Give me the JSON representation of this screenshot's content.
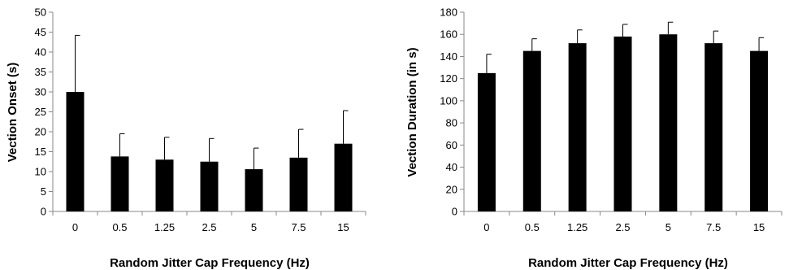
{
  "chart_data": [
    {
      "type": "bar",
      "categories": [
        "0",
        "0.5",
        "1.25",
        "2.5",
        "5",
        "7.5",
        "15"
      ],
      "values": [
        30,
        13.8,
        13,
        12.5,
        10.6,
        13.5,
        17
      ],
      "error_upper": [
        14.2,
        5.7,
        5.6,
        5.8,
        5.3,
        7.1,
        8.3
      ],
      "title": "",
      "xlabel": "Random Jitter Cap Frequency (Hz)",
      "ylabel": "Vection Onset (s)",
      "ylim": [
        0,
        50
      ],
      "yticks": [
        0,
        5,
        10,
        15,
        20,
        25,
        30,
        35,
        40,
        45,
        50
      ],
      "ytick_labels": [
        "0",
        "5",
        "10",
        "15",
        "20",
        "25",
        "30",
        "35",
        "40",
        "45",
        "50"
      ],
      "grid": false,
      "bar_color": "#000000"
    },
    {
      "type": "bar",
      "categories": [
        "0",
        "0.5",
        "1.25",
        "2.5",
        "5",
        "7.5",
        "15"
      ],
      "values": [
        125,
        145,
        152,
        158,
        160,
        152,
        145
      ],
      "error_upper": [
        17,
        11,
        12,
        11,
        11,
        11,
        12
      ],
      "title": "",
      "xlabel": "Random Jitter Cap Frequency (Hz)",
      "ylabel": "Vection Duration (in s)",
      "ylim": [
        0,
        180
      ],
      "yticks": [
        0,
        20,
        40,
        60,
        80,
        100,
        120,
        140,
        160,
        180
      ],
      "ytick_labels": [
        "0",
        "20",
        "40",
        "60",
        "80",
        "100",
        "120",
        "140",
        "160",
        "180"
      ],
      "grid": false,
      "bar_color": "#000000"
    }
  ]
}
